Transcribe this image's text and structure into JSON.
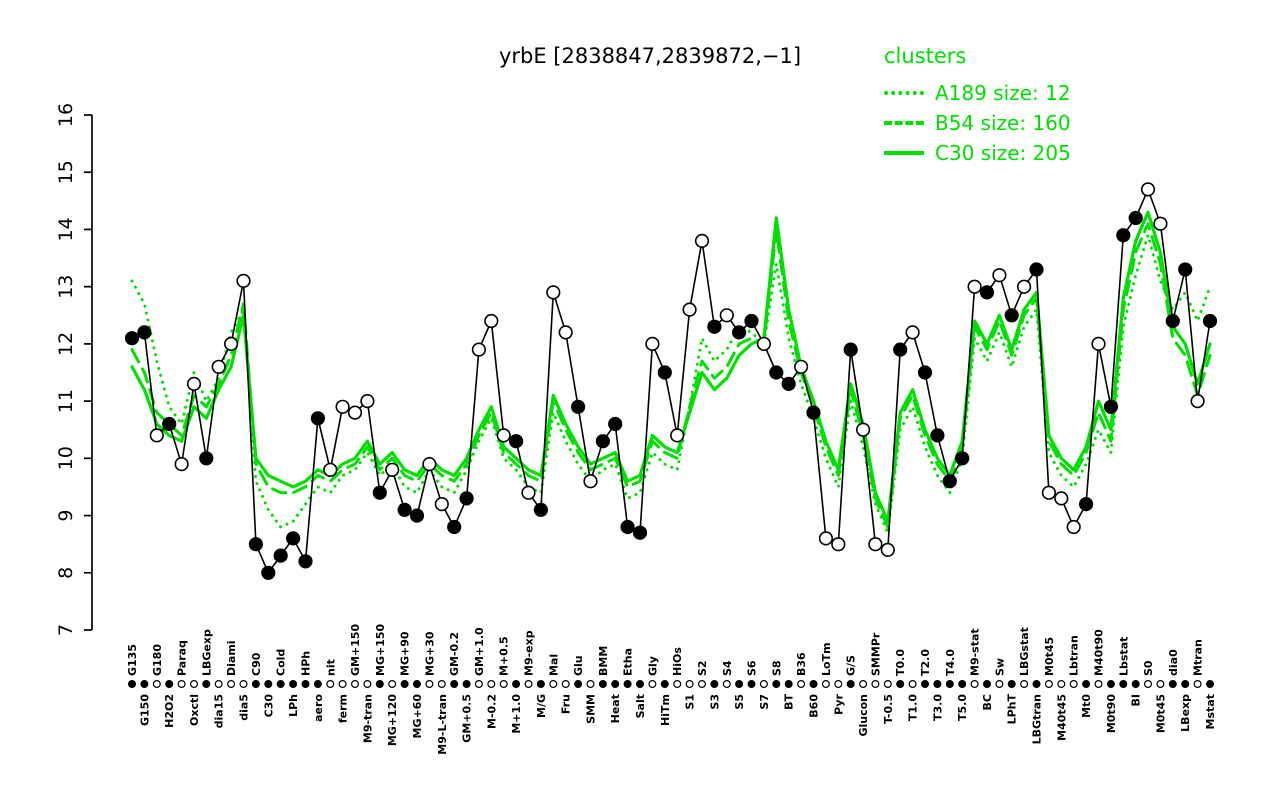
{
  "title": "yrbE [2838847,2839872,−1]",
  "legend": {
    "title": "clusters",
    "entries": [
      {
        "label": "A189 size: 12",
        "style": "dotted"
      },
      {
        "label": "B54 size: 160",
        "style": "dashed"
      },
      {
        "label": "C30 size: 205",
        "style": "solid"
      }
    ]
  },
  "colors": {
    "cluster": "#00e000",
    "gene": "#000000",
    "open_point_fill": "#ffffff"
  },
  "chart_data": {
    "type": "line",
    "title": "yrbE [2838847,2839872,−1]",
    "ylabel": "",
    "xlabel": "",
    "ylim": [
      7,
      16
    ],
    "yticks": [
      7,
      8,
      9,
      10,
      11,
      12,
      13,
      14,
      15,
      16
    ],
    "grid": false,
    "legend_position": "top-right",
    "categories": [
      "G135",
      "G150",
      "G180",
      "H2O2",
      "Paraq",
      "Oxctl",
      "LBGexp",
      "dia15",
      "Diami",
      "dia5",
      "C90",
      "C30",
      "Cold",
      "LPh",
      "HPh",
      "aero",
      "nit",
      "ferm",
      "GM+150",
      "M9-tran",
      "MG+150",
      "MG+120",
      "MG+90",
      "MG+60",
      "MG+30",
      "M9-L-tran",
      "GM-0.2",
      "GM+0.5",
      "GM+1.0",
      "M-0.2",
      "M+0.5",
      "M+1.0",
      "M9-exp",
      "M/G",
      "Mal",
      "Fru",
      "Glu",
      "SMM",
      "BMM",
      "Heat",
      "Etha",
      "Salt",
      "Gly",
      "HiTm",
      "HiOs",
      "S1",
      "S2",
      "S3",
      "S4",
      "S5",
      "S6",
      "S7",
      "S8",
      "BT",
      "B36",
      "B60",
      "LoTm",
      "Pyr",
      "G/S",
      "Glucon",
      "SMMPr",
      "T-0.5",
      "T0.0",
      "T1.0",
      "T2.0",
      "T3.0",
      "T4.0",
      "T5.0",
      "M9-stat",
      "BC",
      "Sw",
      "LPhT",
      "LBGstat",
      "LBGtran",
      "M0t45",
      "M40t45",
      "Lbtran",
      "Mt0",
      "M40t90",
      "M0t90",
      "Lbstat",
      "BI",
      "S0",
      "M0t45",
      "dia0",
      "LBexp",
      "Mtran",
      "Mstat"
    ],
    "series": [
      {
        "name": "yrbE",
        "color": "#000000",
        "style": "solid",
        "markers": true,
        "values": [
          12.1,
          12.2,
          10.4,
          10.6,
          9.9,
          11.3,
          10.0,
          11.6,
          12.0,
          13.1,
          8.5,
          8.0,
          8.3,
          8.6,
          8.2,
          10.7,
          9.8,
          10.9,
          10.8,
          11.0,
          9.4,
          9.8,
          9.1,
          9.0,
          9.9,
          9.2,
          8.8,
          9.3,
          11.9,
          12.4,
          10.4,
          10.3,
          9.4,
          9.1,
          12.9,
          12.2,
          10.9,
          9.6,
          10.3,
          10.6,
          8.8,
          8.7,
          12.0,
          11.5,
          10.4,
          12.6,
          13.8,
          12.3,
          12.5,
          12.2,
          12.4,
          12.0,
          11.5,
          11.3,
          11.6,
          10.8,
          8.6,
          8.5,
          11.9,
          10.5,
          8.5,
          8.4,
          11.9,
          12.2,
          11.5,
          10.4,
          9.6,
          10.0,
          13.0,
          12.9,
          13.2,
          12.5,
          13.0,
          13.3,
          9.4,
          9.3,
          8.8,
          9.2,
          12.0,
          10.9,
          13.9,
          14.2,
          14.7,
          14.1,
          12.4,
          13.3,
          11.0,
          12.4
        ],
        "fill_pattern": [
          "filled",
          "filled",
          "open",
          "filled",
          "open",
          "open",
          "filled",
          "open",
          "open",
          "open",
          "filled",
          "filled",
          "filled",
          "filled",
          "filled",
          "filled",
          "open",
          "open",
          "open",
          "open",
          "filled",
          "open",
          "filled",
          "filled",
          "open",
          "open",
          "filled",
          "filled",
          "open",
          "open",
          "open",
          "filled",
          "open",
          "filled",
          "open",
          "open",
          "filled",
          "open",
          "filled",
          "filled",
          "filled",
          "filled",
          "open",
          "filled",
          "open",
          "open",
          "open",
          "filled",
          "open",
          "filled",
          "filled",
          "open",
          "filled",
          "filled",
          "open",
          "filled",
          "open",
          "open",
          "filled",
          "open",
          "open",
          "open",
          "filled",
          "open",
          "filled",
          "filled",
          "filled",
          "filled",
          "open",
          "filled",
          "open",
          "filled",
          "open",
          "filled",
          "open",
          "open",
          "open",
          "filled",
          "open",
          "filled",
          "filled",
          "filled",
          "open",
          "open",
          "filled",
          "filled",
          "open",
          "filled"
        ]
      },
      {
        "name": "A189 size: 12",
        "color": "#00e000",
        "style": "dotted",
        "markers": false,
        "values": [
          13.1,
          12.7,
          11.7,
          10.9,
          10.6,
          11.5,
          11.0,
          11.4,
          12.2,
          12.6,
          9.6,
          9.1,
          8.8,
          8.9,
          9.2,
          9.5,
          9.4,
          9.7,
          9.8,
          10.1,
          9.7,
          9.9,
          9.5,
          9.4,
          9.8,
          9.5,
          9.4,
          9.8,
          10.3,
          10.7,
          10.0,
          9.8,
          9.5,
          9.4,
          10.8,
          10.3,
          9.9,
          9.6,
          9.8,
          9.9,
          9.3,
          9.4,
          10.1,
          9.9,
          9.8,
          10.9,
          12.1,
          11.7,
          11.9,
          12.3,
          12.2,
          12.0,
          13.4,
          12.1,
          11.3,
          10.7,
          10.0,
          9.5,
          11.0,
          10.2,
          9.2,
          8.7,
          10.5,
          10.9,
          10.2,
          9.7,
          9.4,
          10.0,
          12.1,
          11.7,
          12.2,
          11.6,
          12.3,
          12.6,
          10.1,
          9.7,
          9.5,
          9.9,
          10.5,
          10.1,
          12.3,
          13.2,
          13.9,
          13.1,
          12.6,
          12.9,
          12.4,
          13.0
        ]
      },
      {
        "name": "B54 size: 160",
        "color": "#00e000",
        "style": "dashed",
        "markers": false,
        "values": [
          11.9,
          11.5,
          10.8,
          10.6,
          10.4,
          11.1,
          10.9,
          11.3,
          11.8,
          12.7,
          9.9,
          9.5,
          9.4,
          9.4,
          9.5,
          9.7,
          9.6,
          9.8,
          9.9,
          10.2,
          9.8,
          10.0,
          9.7,
          9.6,
          9.9,
          9.7,
          9.6,
          9.9,
          10.4,
          10.8,
          10.1,
          9.9,
          9.7,
          9.6,
          11.0,
          10.5,
          10.1,
          9.8,
          9.9,
          10.0,
          9.5,
          9.6,
          10.3,
          10.1,
          10.0,
          10.9,
          11.7,
          11.4,
          11.6,
          12.0,
          12.1,
          12.0,
          14.0,
          12.4,
          11.5,
          10.9,
          10.2,
          9.7,
          11.2,
          10.4,
          9.3,
          8.8,
          10.7,
          11.1,
          10.4,
          9.9,
          9.6,
          10.2,
          12.3,
          11.9,
          12.4,
          11.8,
          12.5,
          12.8,
          10.3,
          9.9,
          9.7,
          10.1,
          10.8,
          10.3,
          12.6,
          13.6,
          14.1,
          13.4,
          12.1,
          11.8,
          11.1,
          11.8
        ]
      },
      {
        "name": "C30 size: 205",
        "color": "#00e000",
        "style": "solid",
        "markers": false,
        "values": [
          11.6,
          11.2,
          10.6,
          10.4,
          10.3,
          10.9,
          10.7,
          11.2,
          11.6,
          12.5,
          10.0,
          9.7,
          9.6,
          9.5,
          9.6,
          9.8,
          9.7,
          9.9,
          10.0,
          10.3,
          9.9,
          10.1,
          9.8,
          9.7,
          10.0,
          9.8,
          9.7,
          10.0,
          10.5,
          10.9,
          10.2,
          10.0,
          9.8,
          9.7,
          11.1,
          10.6,
          10.2,
          9.9,
          10.0,
          10.1,
          9.6,
          9.7,
          10.4,
          10.2,
          10.1,
          10.8,
          11.5,
          11.2,
          11.4,
          11.8,
          12.0,
          12.1,
          14.2,
          12.6,
          11.6,
          11.0,
          10.3,
          9.8,
          11.3,
          10.6,
          9.4,
          8.9,
          10.8,
          11.2,
          10.5,
          10.0,
          9.7,
          10.3,
          12.4,
          12.0,
          12.5,
          11.9,
          12.6,
          12.9,
          10.4,
          10.0,
          9.8,
          10.2,
          11.0,
          10.5,
          12.8,
          13.8,
          14.3,
          13.6,
          12.3,
          12.0,
          11.3,
          12.0
        ]
      }
    ]
  }
}
